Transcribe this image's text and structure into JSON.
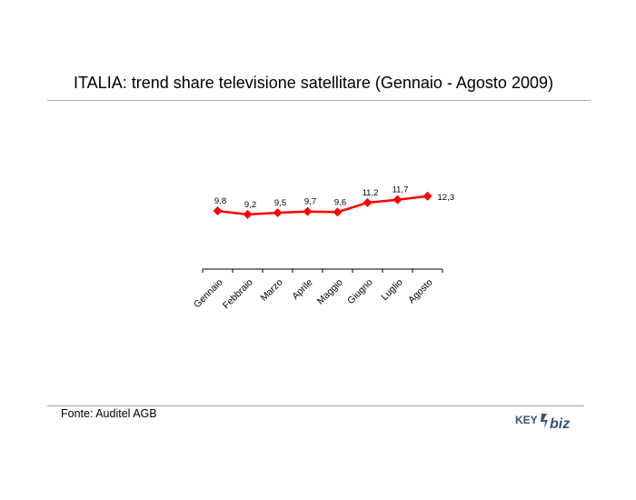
{
  "title": "ITALIA: trend share televisione satellitare (Gennaio - Agosto 2009)",
  "source": "Fonte: Auditel AGB",
  "logo": {
    "text_left": "KEY",
    "text_right": "biz"
  },
  "colors": {
    "series": "#ff0000",
    "axis": "#000000",
    "rule": "#a6a6a6"
  },
  "chart_data": {
    "type": "line",
    "categories": [
      "Gennaio",
      "Febbraio",
      "Marzo",
      "Aprile",
      "Maggio",
      "Giugno",
      "Luglio",
      "Agosto"
    ],
    "series": [
      {
        "values": [
          9.8,
          9.2,
          9.5,
          9.7,
          9.6,
          11.2,
          11.7,
          12.3
        ],
        "labels": [
          "9,8",
          "9,2",
          "9,5",
          "9,7",
          "9,6",
          "11,2",
          "11,7",
          "12,3"
        ],
        "color": "#ff0000",
        "marker": "diamond"
      }
    ],
    "title": "",
    "xlabel": "",
    "ylabel": "",
    "grid": false,
    "legend": "none"
  }
}
